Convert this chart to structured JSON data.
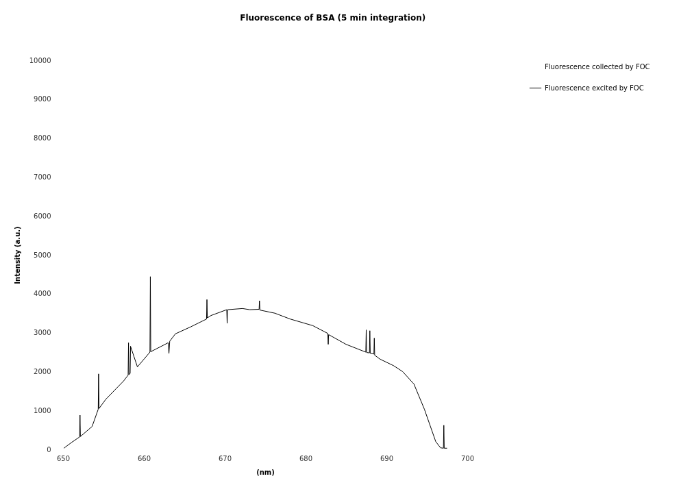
{
  "chart_data": {
    "type": "line",
    "title": "Fluorescence of BSA (5 min integration)",
    "xlabel": "(nm)",
    "ylabel": "Intensity (a.u.)",
    "x": [
      650.1,
      651.0,
      652.05,
      652.1,
      652.15,
      653.6,
      654.35,
      654.4,
      654.45,
      655.3,
      657.5,
      658.05,
      658.1,
      658.15,
      658.3,
      658.35,
      659.2,
      660.75,
      660.8,
      660.85,
      663.0,
      663.1,
      663.2,
      663.9,
      665.8,
      667.75,
      667.8,
      667.85,
      668.3,
      670.25,
      670.3,
      670.35,
      672.2,
      673.1,
      674.25,
      674.3,
      674.35,
      676.2,
      678.1,
      680.9,
      682.75,
      682.8,
      682.85,
      685.0,
      687.45,
      687.5,
      687.55,
      687.9,
      687.95,
      688.0,
      688.45,
      688.5,
      688.55,
      689.2,
      690.9,
      692.0,
      693.4,
      694.7,
      696.1,
      696.7,
      697.05,
      697.1,
      697.15,
      697.5
    ],
    "series": [
      {
        "name": "Fluorescence collected by FOC",
        "values": [
          null,
          null,
          null,
          null,
          null,
          null,
          null,
          null,
          null,
          null,
          null,
          null,
          null,
          null,
          null,
          null,
          null,
          null,
          null,
          null,
          null,
          null,
          null,
          null,
          null,
          null,
          null,
          null,
          null,
          null,
          null,
          null,
          null,
          null,
          null,
          null,
          null,
          null,
          null,
          null,
          null,
          null,
          null,
          null,
          null,
          null,
          null,
          null,
          null,
          null,
          null,
          null,
          null,
          null,
          null,
          null,
          null,
          null,
          null,
          null,
          null,
          null,
          null,
          null
        ]
      },
      {
        "name": "Fluorescence excited by FOC",
        "color": "#000000",
        "values": [
          30,
          170,
          320,
          880,
          330,
          590,
          1030,
          1940,
          1050,
          1290,
          1760,
          1910,
          2740,
          1920,
          1950,
          2650,
          2120,
          2500,
          4440,
          2510,
          2740,
          2470,
          2780,
          2970,
          3150,
          3350,
          3850,
          3380,
          3440,
          3590,
          3240,
          3590,
          3620,
          3590,
          3600,
          3820,
          3580,
          3500,
          3350,
          3180,
          2980,
          2700,
          2950,
          2700,
          2500,
          3070,
          2490,
          2480,
          3050,
          2470,
          2450,
          2860,
          2420,
          2320,
          2150,
          2000,
          1680,
          1030,
          200,
          40,
          30,
          620,
          30,
          30
        ]
      }
    ],
    "xlim": [
      650,
      700
    ],
    "xticks": [
      650,
      660,
      670,
      680,
      690,
      700
    ],
    "ylim": [
      0,
      10000
    ],
    "yticks": [
      0,
      1000,
      2000,
      3000,
      4000,
      5000,
      6000,
      7000,
      8000,
      9000,
      10000
    ],
    "grid": false,
    "legend": "right"
  }
}
